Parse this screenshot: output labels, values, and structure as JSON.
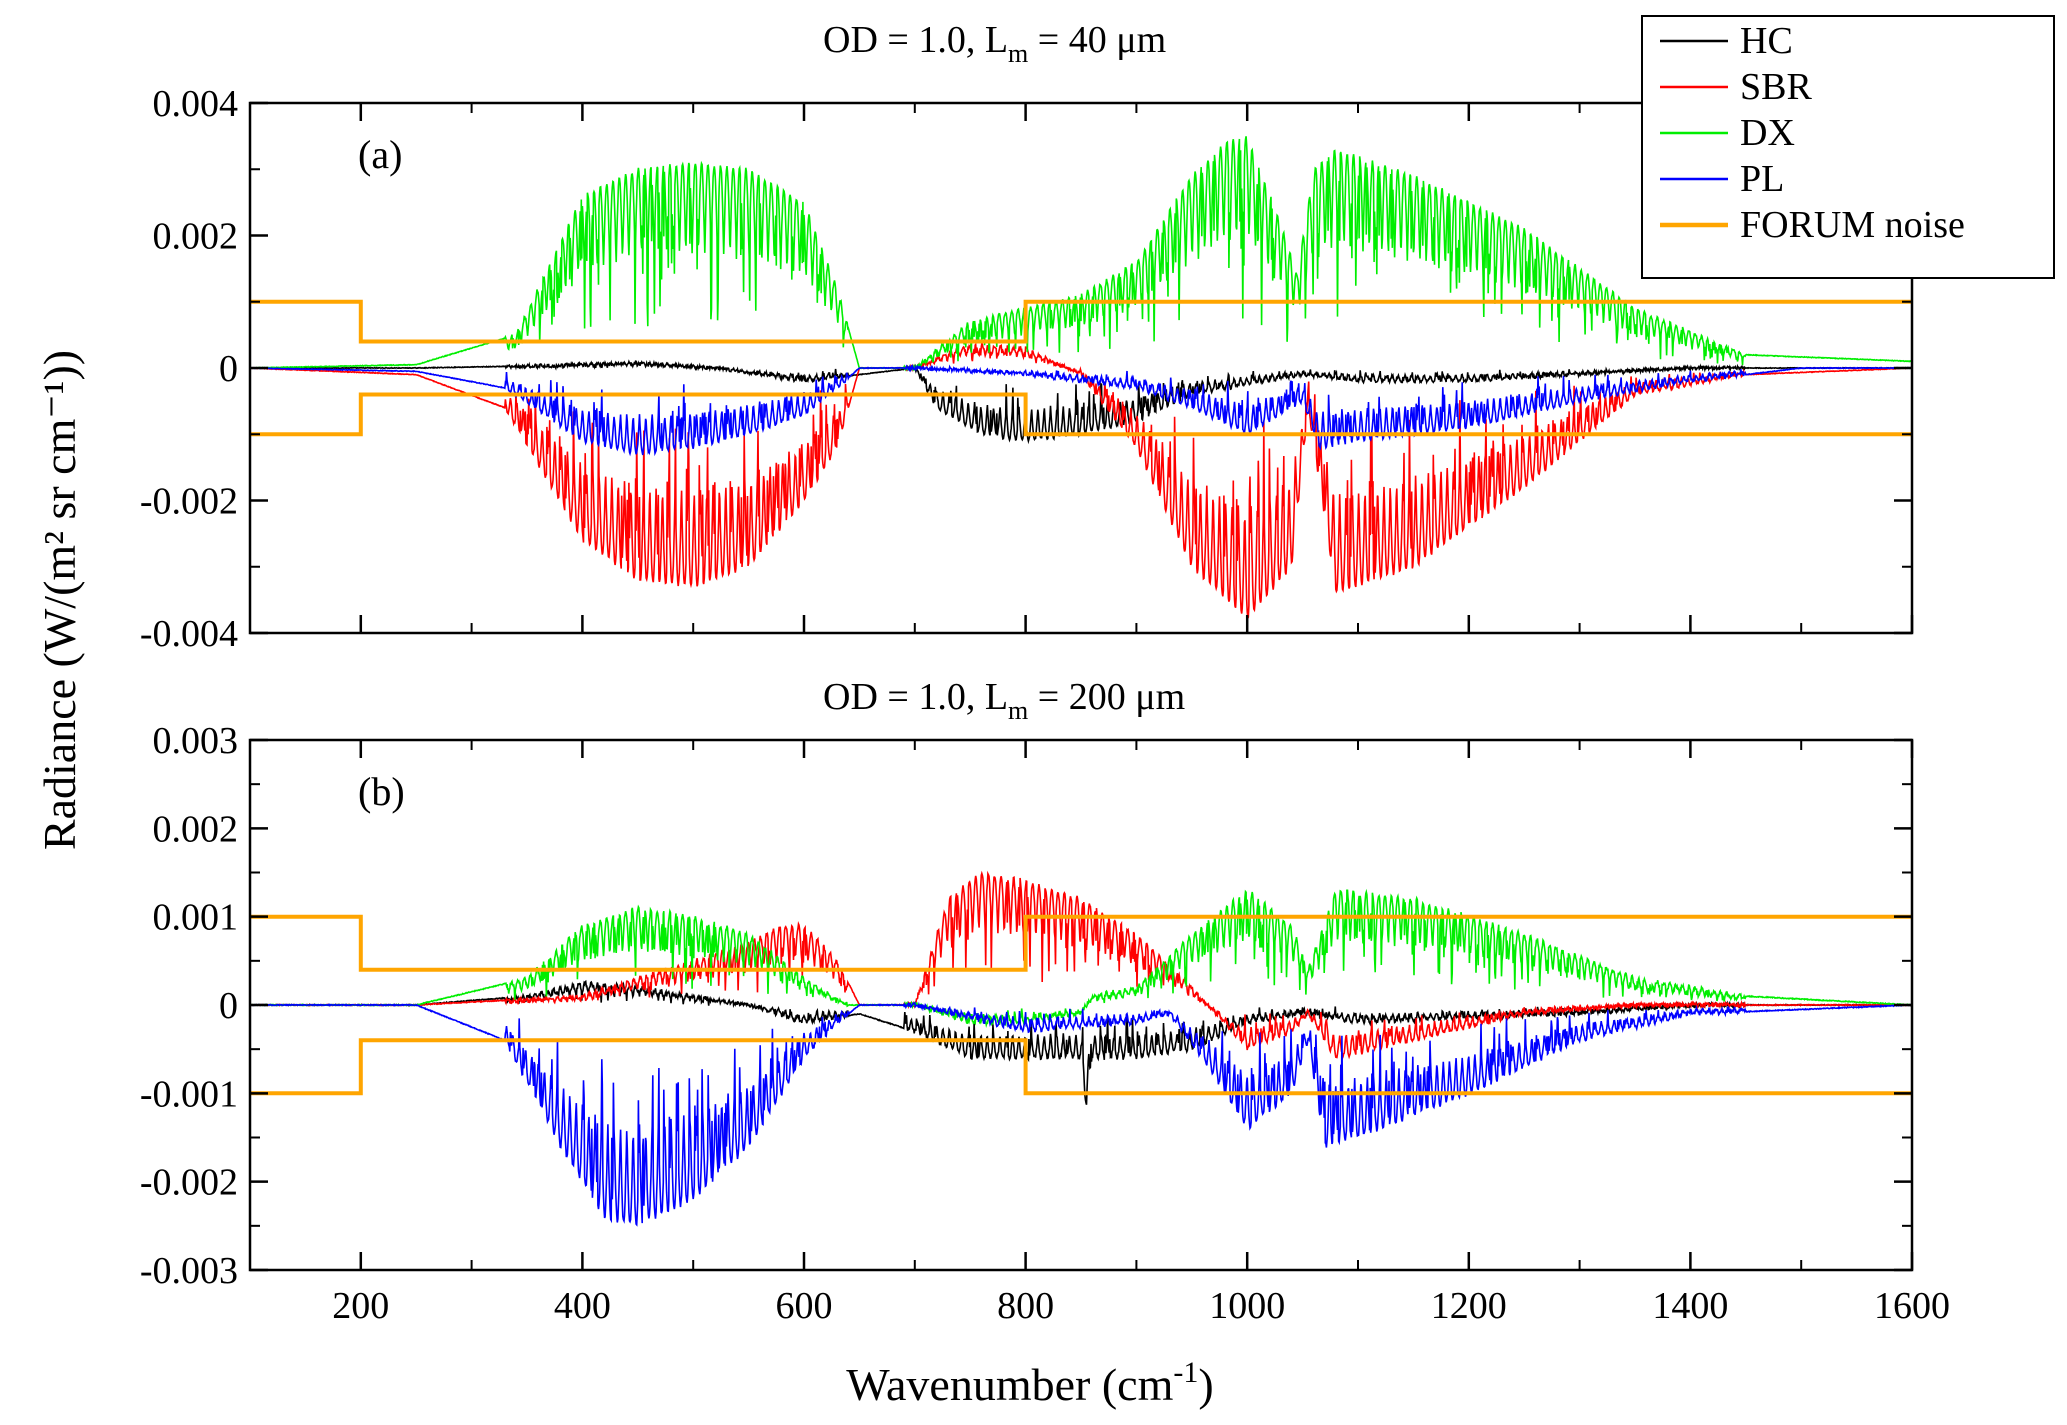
{
  "chart_data": [
    {
      "type": "line",
      "panel_label": "(a)",
      "title": {
        "prefix": "OD = 1.0,    L",
        "sub": "m",
        "suffix": " = 40 μm"
      },
      "xlabel": {
        "text": "Wavenumber (cm",
        "sup": "-1",
        "tail": ")"
      },
      "ylabel": "Radiance (W/(m² sr cm⁻¹))",
      "xlim": [
        100,
        1600
      ],
      "ylim": [
        -0.004,
        0.004
      ],
      "xticks": [
        200,
        400,
        600,
        800,
        1000,
        1200,
        1400,
        1600
      ],
      "yticks": [
        -0.004,
        -0.002,
        0,
        0.002,
        0.004
      ],
      "ytick_labels": [
        "-0.004",
        "-0.002",
        "0",
        "0.002",
        "0.004"
      ],
      "grid": false,
      "legend_position": "top-right",
      "series": [
        {
          "name": "HC",
          "color": "#000000",
          "x": [
            100,
            250,
            350,
            450,
            520,
            600,
            650,
            700,
            720,
            760,
            800,
            850,
            900,
            950,
            1000,
            1050,
            1100,
            1200,
            1300,
            1400,
            1500,
            1600
          ],
          "y": [
            0,
            0,
            3e-05,
            8e-05,
            0,
            -0.0002,
            -0.0001,
            0,
            -0.0006,
            -0.001,
            -0.0011,
            -0.001,
            -0.0008,
            -0.0004,
            -0.00025,
            -0.0001,
            -0.0002,
            -0.0002,
            -0.0001,
            0,
            0,
            0
          ]
        },
        {
          "name": "SBR",
          "color": "#ff0000",
          "x": [
            100,
            250,
            330,
            400,
            450,
            500,
            550,
            600,
            630,
            650,
            700,
            740,
            760,
            800,
            850,
            900,
            950,
            1000,
            1040,
            1055,
            1080,
            1150,
            1250,
            1350,
            1450,
            1600
          ],
          "y": [
            0,
            -0.0001,
            -0.0006,
            -0.0026,
            -0.0032,
            -0.0033,
            -0.003,
            -0.002,
            -0.0012,
            0,
            0,
            0.0003,
            0.00035,
            0.0003,
            -0.0001,
            -0.0012,
            -0.003,
            -0.0038,
            -0.003,
            -0.0006,
            -0.0034,
            -0.003,
            -0.0018,
            -0.0004,
            -0.0001,
            0
          ]
        },
        {
          "name": "DX",
          "color": "#00ee00",
          "x": [
            100,
            250,
            340,
            400,
            450,
            500,
            550,
            600,
            630,
            650,
            700,
            750,
            800,
            850,
            900,
            950,
            980,
            1000,
            1030,
            1045,
            1060,
            1080,
            1150,
            1250,
            1350,
            1450,
            1600
          ],
          "y": [
            0,
            5e-05,
            0.0005,
            0.0026,
            0.003,
            0.0031,
            0.003,
            0.0025,
            0.0012,
            0,
            0,
            0.0007,
            0.0009,
            0.0011,
            0.0016,
            0.0029,
            0.0034,
            0.0035,
            0.0022,
            0.0014,
            0.003,
            0.0033,
            0.0029,
            0.0021,
            0.0009,
            0.0002,
            0.0001
          ]
        },
        {
          "name": "PL",
          "color": "#0000ff",
          "x": [
            100,
            250,
            330,
            400,
            450,
            500,
            550,
            600,
            630,
            650,
            700,
            800,
            900,
            950,
            1000,
            1030,
            1050,
            1065,
            1100,
            1200,
            1300,
            1400,
            1500,
            1600
          ],
          "y": [
            0,
            -5e-05,
            -0.0003,
            -0.0011,
            -0.0013,
            -0.0012,
            -0.001,
            -0.0007,
            -0.0003,
            0,
            0,
            -0.0001,
            -0.0003,
            -0.0006,
            -0.001,
            -0.0007,
            -0.0005,
            -0.0012,
            -0.0011,
            -0.0009,
            -0.0005,
            -0.0002,
            0,
            0
          ]
        },
        {
          "name": "FORUM noise",
          "color": "#ffa500",
          "step": true,
          "x": [
            100,
            200,
            200,
            800,
            800,
            1600
          ],
          "y": [
            0.001,
            0.001,
            0.0004,
            0.0004,
            0.001,
            0.001
          ],
          "mirror": true
        }
      ]
    },
    {
      "type": "line",
      "panel_label": "(b)",
      "title": {
        "prefix": "OD = 1.0,    L",
        "sub": "m",
        "suffix": " = 200 μm"
      },
      "xlabel": {
        "text": "Wavenumber (cm",
        "sup": "-1",
        "tail": ")"
      },
      "ylabel": "Radiance (W/(m² sr cm⁻¹))",
      "xlim": [
        100,
        1600
      ],
      "ylim": [
        -0.003,
        0.003
      ],
      "xticks": [
        200,
        400,
        600,
        800,
        1000,
        1200,
        1400,
        1600
      ],
      "xtick_labels": [
        "200",
        "400",
        "600",
        "800",
        "1000",
        "1200",
        "1400",
        "1600"
      ],
      "yticks": [
        -0.003,
        -0.002,
        -0.001,
        0,
        0.001,
        0.002,
        0.003
      ],
      "ytick_labels": [
        "-0.003",
        "-0.002",
        "-0.001",
        "0",
        "0.001",
        "0.002",
        "0.003"
      ],
      "grid": false,
      "series": [
        {
          "name": "HC",
          "color": "#000000",
          "x": [
            100,
            250,
            350,
            400,
            450,
            500,
            550,
            600,
            650,
            700,
            750,
            800,
            850,
            855,
            860,
            900,
            950,
            1000,
            1050,
            1100,
            1200,
            1300,
            1400,
            1600
          ],
          "y": [
            0,
            0,
            0.0001,
            0.00025,
            0.0002,
            0.0001,
            0,
            -0.0002,
            -0.0001,
            -0.0003,
            -0.0006,
            -0.0006,
            -0.0006,
            -0.0012,
            -0.0006,
            -0.0006,
            -0.0005,
            -0.0002,
            -0.0001,
            -0.0002,
            -0.00015,
            -0.0001,
            0,
            0
          ]
        },
        {
          "name": "SBR",
          "color": "#ff0000",
          "x": [
            100,
            250,
            400,
            450,
            500,
            550,
            580,
            600,
            630,
            650,
            700,
            730,
            760,
            800,
            850,
            900,
            950,
            1000,
            1040,
            1055,
            1080,
            1150,
            1250,
            1350,
            1600
          ],
          "y": [
            0,
            0,
            0.0001,
            0.0003,
            0.0005,
            0.0007,
            0.0009,
            0.0009,
            0.0005,
            0,
            0,
            0.0012,
            0.0015,
            0.0014,
            0.0012,
            0.0008,
            0.0002,
            -0.0005,
            -0.0003,
            -0.0001,
            -0.0006,
            -0.0004,
            -0.0001,
            0,
            0
          ]
        },
        {
          "name": "DX",
          "color": "#00ee00",
          "x": [
            100,
            250,
            350,
            400,
            450,
            500,
            550,
            600,
            640,
            650,
            700,
            750,
            800,
            850,
            860,
            900,
            950,
            1000,
            1040,
            1055,
            1080,
            1150,
            1250,
            1350,
            1450,
            1600
          ],
          "y": [
            0,
            0,
            0.0003,
            0.0009,
            0.0011,
            0.001,
            0.0008,
            0.0003,
            0,
            0,
            0,
            -0.0002,
            -0.0002,
            -0.0001,
            0.0001,
            0.0002,
            0.0008,
            0.0013,
            0.0009,
            0.0004,
            0.0013,
            0.0012,
            0.0008,
            0.0003,
            0.0001,
            0
          ]
        },
        {
          "name": "PL",
          "color": "#0000ff",
          "x": [
            100,
            250,
            330,
            380,
            420,
            450,
            500,
            550,
            600,
            630,
            650,
            700,
            800,
            900,
            930,
            970,
            1000,
            1040,
            1055,
            1070,
            1100,
            1200,
            1300,
            1400,
            1600
          ],
          "y": [
            0,
            0,
            -0.0004,
            -0.0016,
            -0.0024,
            -0.0025,
            -0.0022,
            -0.0016,
            -0.0006,
            -0.0002,
            0,
            0,
            -0.0003,
            -0.0002,
            -0.0001,
            -0.0008,
            -0.0014,
            -0.001,
            -0.0004,
            -0.0016,
            -0.0015,
            -0.001,
            -0.0004,
            -0.0001,
            0
          ]
        },
        {
          "name": "FORUM noise",
          "color": "#ffa500",
          "step": true,
          "x": [
            100,
            200,
            200,
            800,
            800,
            1600
          ],
          "y": [
            0.001,
            0.001,
            0.0004,
            0.0004,
            0.001,
            0.001
          ],
          "mirror": true
        }
      ]
    }
  ],
  "legend": {
    "entries": [
      {
        "label": "HC",
        "color": "#000000"
      },
      {
        "label": "SBR",
        "color": "#ff0000"
      },
      {
        "label": "DX",
        "color": "#00ee00"
      },
      {
        "label": "PL",
        "color": "#0000ff"
      },
      {
        "label": "FORUM noise",
        "color": "#ffa500"
      }
    ]
  }
}
